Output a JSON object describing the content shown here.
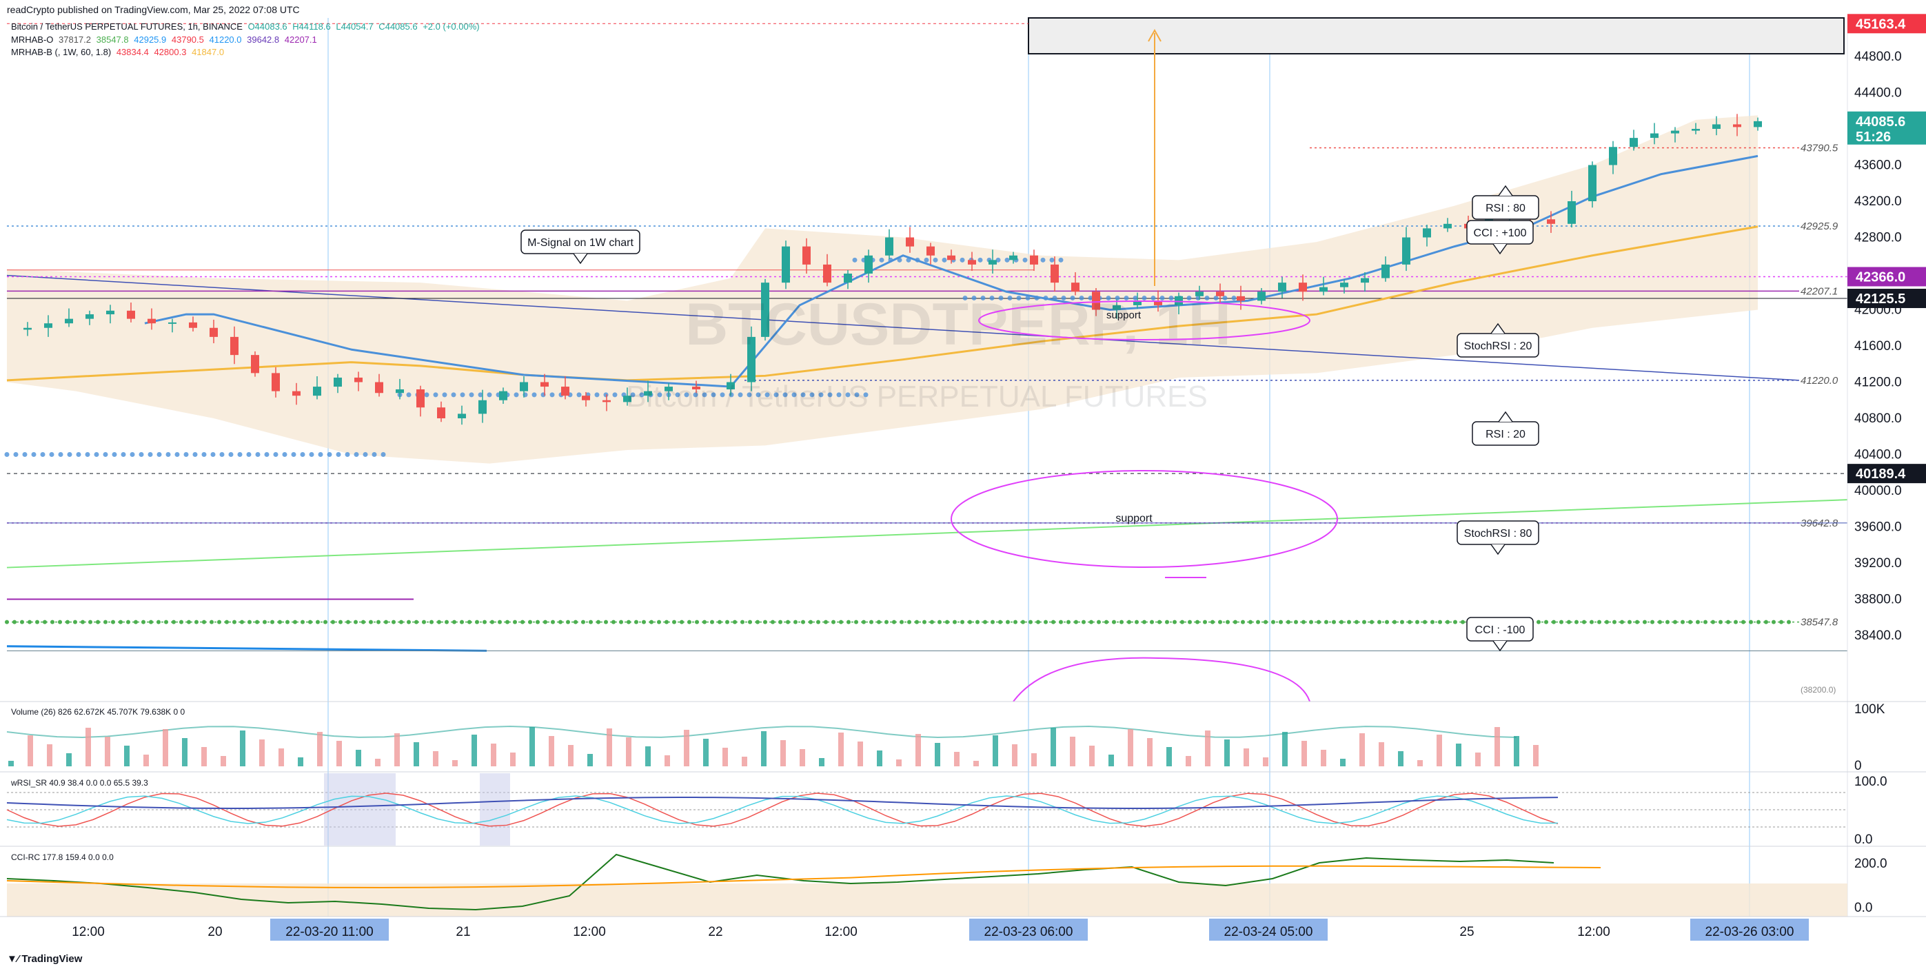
{
  "header": {
    "published": "readCrypto published on TradingView.com, Mar 25, 2022 07:08 UTC",
    "symbol_line": "Bitcoin / TetherUS PERPETUAL FUTURES, 1h, BINANCE",
    "ohlc": {
      "o": "O44083.6",
      "h": "H44118.6",
      "l": "L44054.7",
      "c": "C44085.6",
      "chg": "+2.0 (+0.00%)"
    },
    "ind1": {
      "name": "MRHAB-O",
      "values": [
        "37817.2",
        "38547.8",
        "42925.9",
        "43790.5",
        "41220.0",
        "39642.8",
        "42207.1"
      ]
    },
    "ind2": {
      "name": "MRHAB-B (, 1W, 60, 1.8)",
      "values": [
        "43834.4",
        "42800.3",
        "41847.0"
      ]
    }
  },
  "watermark": {
    "ticker": "BTCUSDTPERP, 1H",
    "name": "Bitcoin / TetherUS PERPETUAL FUTURES"
  },
  "colors": {
    "up": "#26a69a",
    "down": "#ef5350",
    "bg_band": "#f6e7d3",
    "blue_ema": "#4a90d9",
    "orange_ema": "#f4b93e",
    "magenta": "#e040fb",
    "green_line": "#7ee87e",
    "purple": "#9c27b0"
  },
  "chart_data": {
    "type": "candlestick",
    "title": "Bitcoin / TetherUS PERPETUAL FUTURES, 1h, BINANCE",
    "ylim": [
      38200,
      45500
    ],
    "y_ticks": [
      44800,
      44400,
      44000,
      43600,
      43200,
      42800,
      42400,
      42000,
      41600,
      41200,
      40800,
      40400,
      40000,
      39600,
      39200,
      38800,
      38400
    ],
    "x_ticks": [
      "12:00",
      "20",
      "22-03-20   11:00",
      "21",
      "12:00",
      "22",
      "12:00",
      "22-03-23   06:00",
      "22-03-24   05:00",
      "25",
      "12:00",
      "22-03-26   03:00"
    ],
    "close_path": [
      [
        0,
        41780
      ],
      [
        0.03,
        41800
      ],
      [
        0.06,
        41850
      ],
      [
        0.09,
        41900
      ],
      [
        0.12,
        41950
      ],
      [
        0.15,
        41990
      ],
      [
        0.18,
        41900
      ],
      [
        0.21,
        41850
      ],
      [
        0.24,
        41860
      ],
      [
        0.27,
        41800
      ],
      [
        0.3,
        41700
      ],
      [
        0.33,
        41500
      ],
      [
        0.36,
        41300
      ],
      [
        0.39,
        41100
      ],
      [
        0.42,
        41050
      ],
      [
        0.45,
        41150
      ],
      [
        0.48,
        41250
      ],
      [
        0.51,
        41200
      ],
      [
        0.54,
        41080
      ],
      [
        0.57,
        41120
      ],
      [
        0.6,
        40920
      ],
      [
        0.63,
        40800
      ],
      [
        0.66,
        40850
      ],
      [
        0.69,
        41000
      ],
      [
        0.72,
        41100
      ],
      [
        0.75,
        41200
      ],
      [
        0.78,
        41150
      ],
      [
        0.81,
        41050
      ],
      [
        0.84,
        41000
      ],
      [
        0.87,
        40980
      ],
      [
        0.9,
        41050
      ],
      [
        0.93,
        41100
      ],
      [
        0.96,
        41150
      ],
      [
        1.0,
        41120
      ],
      [
        1.05,
        41200
      ],
      [
        1.08,
        41700
      ],
      [
        1.1,
        42300
      ],
      [
        1.13,
        42700
      ],
      [
        1.16,
        42500
      ],
      [
        1.19,
        42300
      ],
      [
        1.22,
        42400
      ],
      [
        1.25,
        42600
      ],
      [
        1.28,
        42800
      ],
      [
        1.31,
        42700
      ],
      [
        1.34,
        42600
      ],
      [
        1.37,
        42550
      ],
      [
        1.4,
        42500
      ],
      [
        1.43,
        42550
      ],
      [
        1.46,
        42600
      ],
      [
        1.49,
        42500
      ],
      [
        1.52,
        42300
      ],
      [
        1.55,
        42200
      ],
      [
        1.58,
        42000
      ],
      [
        1.61,
        42050
      ],
      [
        1.64,
        42100
      ],
      [
        1.67,
        42050
      ],
      [
        1.7,
        42150
      ],
      [
        1.73,
        42200
      ],
      [
        1.76,
        42150
      ],
      [
        1.79,
        42100
      ],
      [
        1.82,
        42200
      ],
      [
        1.85,
        42300
      ],
      [
        1.88,
        42200
      ],
      [
        1.91,
        42250
      ],
      [
        1.94,
        42300
      ],
      [
        1.97,
        42350
      ],
      [
        2.0,
        42500
      ],
      [
        2.03,
        42800
      ],
      [
        2.06,
        42900
      ],
      [
        2.09,
        42950
      ],
      [
        2.12,
        42900
      ],
      [
        2.15,
        43000
      ],
      [
        2.18,
        43050
      ],
      [
        2.21,
        43000
      ],
      [
        2.24,
        42950
      ],
      [
        2.27,
        43200
      ],
      [
        2.3,
        43600
      ],
      [
        2.33,
        43800
      ],
      [
        2.36,
        43900
      ],
      [
        2.39,
        43950
      ],
      [
        2.42,
        43980
      ],
      [
        2.45,
        44000
      ],
      [
        2.48,
        44050
      ],
      [
        2.51,
        44020
      ],
      [
        2.54,
        44085
      ]
    ],
    "levels": [
      {
        "price": 43790.5,
        "label": "43790.5",
        "color": "#ef5350",
        "style": "dotted"
      },
      {
        "price": 42925.9,
        "label": "42925.9",
        "color": "#4a90d9",
        "style": "dotted"
      },
      {
        "price": 42207.1,
        "label": "42207.1",
        "color": "#9c27b0",
        "style": "solid"
      },
      {
        "price": 41220.0,
        "label": "41220.0",
        "color": "#3f51b5",
        "style": "dotted"
      },
      {
        "price": 39642.8,
        "label": "39642.8",
        "color": "#9c27b0",
        "style": "dotted"
      },
      {
        "price": 38547.8,
        "label": "38547.8",
        "color": "#4caf50",
        "style": "dotted"
      }
    ],
    "price_tags": [
      {
        "price": 45163.4,
        "label": "45163.4",
        "bg": "#f23645"
      },
      {
        "price": 44085.6,
        "label": "44085.6",
        "sub": "51:26",
        "bg": "#26a69a"
      },
      {
        "price": 42366.0,
        "label": "42366.0",
        "bg": "#9c27b0"
      },
      {
        "price": 42125.5,
        "label": "42125.5",
        "bg": "#131722"
      },
      {
        "price": 40189.4,
        "label": "40189.4",
        "bg": "#131722"
      }
    ],
    "bottom_label": "(38200.0)",
    "annotations": [
      {
        "text": "M-Signal on 1W chart"
      },
      {
        "text": "RSI : 80"
      },
      {
        "text": "CCI : +100"
      },
      {
        "text": "StochRSI :  20"
      },
      {
        "text": "RSI : 20"
      },
      {
        "text": "StochRSI : 80"
      },
      {
        "text": "CCI : -100"
      },
      {
        "text": "support"
      },
      {
        "text": "support"
      }
    ],
    "volume_panel": {
      "label": "Volume (26)",
      "values": [
        "826",
        "62.672K",
        "45.707K",
        "79.638K",
        "0",
        "0"
      ],
      "axis": [
        "100K",
        "0"
      ]
    },
    "rsi_panel": {
      "label": "wRSI_SR",
      "values": [
        "40.9",
        "38.4",
        "0.0",
        "0.0",
        "65.5",
        "39.3"
      ],
      "axis": [
        "100.0",
        "0.0"
      ]
    },
    "cci_panel": {
      "label": "CCI-RC",
      "values": [
        "177.8",
        "159.4",
        "0.0",
        "0.0"
      ],
      "axis": [
        "200.0",
        "0.0"
      ]
    }
  },
  "footer": {
    "brand": "TradingView"
  }
}
